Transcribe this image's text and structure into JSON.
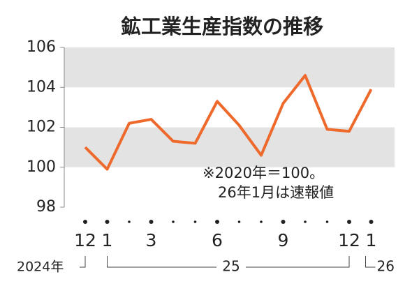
{
  "chart_data": {
    "type": "line",
    "title": "鉱工業生産指数の推移",
    "categories": [
      "12",
      "1",
      null,
      "3",
      null,
      null,
      "6",
      null,
      null,
      "9",
      null,
      null,
      "12",
      "1"
    ],
    "series": [
      {
        "color": "#ee6a2c",
        "values": [
          101.0,
          99.9,
          102.2,
          102.4,
          101.3,
          101.2,
          103.3,
          102.1,
          100.6,
          103.2,
          104.6,
          101.9,
          101.8,
          103.9
        ]
      }
    ],
    "ylim": [
      98,
      106
    ],
    "yticks": [
      98,
      100,
      102,
      104,
      106
    ],
    "bands": [
      [
        100,
        102
      ],
      [
        104,
        106
      ]
    ],
    "band_color": "#e3e3e3",
    "annotations": [
      "※2020年＝100。",
      "26年1月は速報値"
    ],
    "year_labels": [
      "2024年",
      "25",
      "26"
    ]
  }
}
